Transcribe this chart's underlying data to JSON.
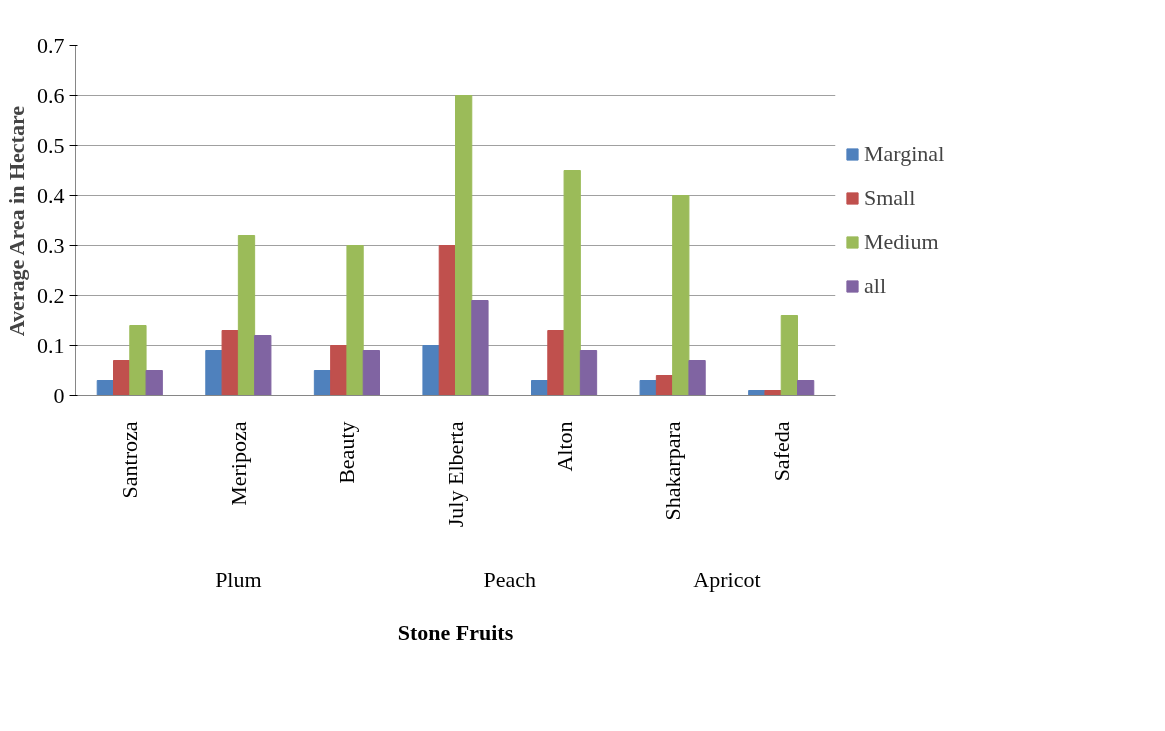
{
  "chart_data": {
    "type": "bar",
    "xlabel": "Stone Fruits",
    "ylabel": "Average Area in Hectare",
    "categories": [
      "Santroza",
      "Meripoza",
      "Beauty",
      "July Elberta",
      "Alton",
      "Shakarpara",
      "Safeda"
    ],
    "series": [
      {
        "name": "Marginal",
        "color": "#4f81bd",
        "values": [
          0.03,
          0.09,
          0.05,
          0.1,
          0.03,
          0.03,
          0.01
        ]
      },
      {
        "name": "Small",
        "color": "#c0504d",
        "values": [
          0.07,
          0.13,
          0.1,
          0.3,
          0.13,
          0.04,
          0.01
        ]
      },
      {
        "name": "Medium",
        "color": "#9bbb59",
        "values": [
          0.14,
          0.32,
          0.3,
          0.6,
          0.45,
          0.4,
          0.16
        ]
      },
      {
        "name": "all",
        "color": "#8064a2",
        "values": [
          0.05,
          0.12,
          0.09,
          0.19,
          0.09,
          0.07,
          0.03
        ]
      }
    ],
    "annotations": [
      "Plum",
      "Peach",
      "Apricot"
    ],
    "ylim": [
      0,
      0.7
    ],
    "yticks": [
      {
        "value": 0,
        "label": "0"
      },
      0.1,
      0.2,
      0.3,
      0.4,
      0.5,
      0.6,
      0.7
    ],
    "grid": "y",
    "legend": "right"
  }
}
